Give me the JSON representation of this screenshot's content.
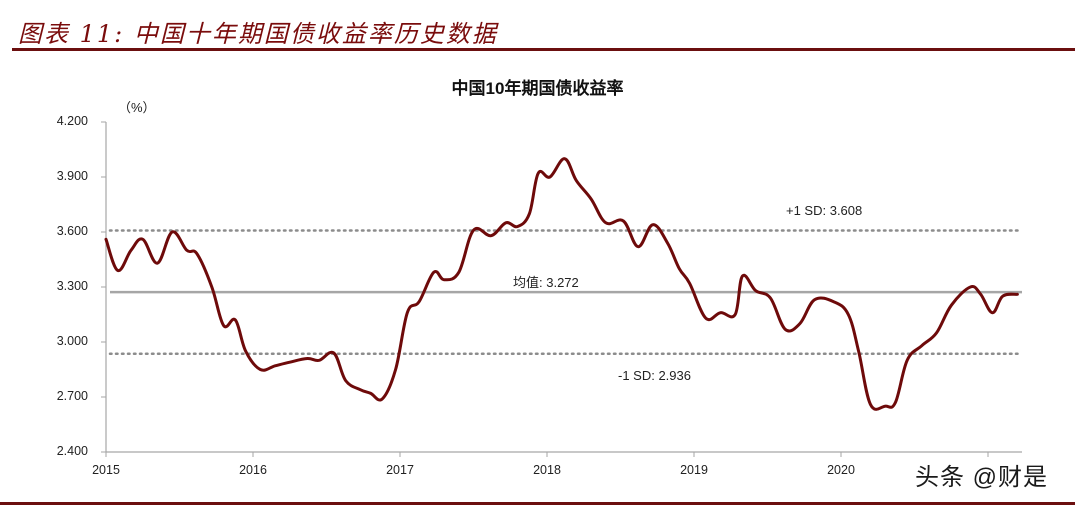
{
  "figure": {
    "title": "图表 11:  中国十年期国债收益率历史数据"
  },
  "watermark": "头条 @财是",
  "colors": {
    "accent": "#6b0f0f",
    "line": "#6e0a0a",
    "mean_line": "#a6a6a6",
    "sd_line": "#8c8c8c",
    "axis": "#a6a6a6"
  },
  "chart_data": {
    "type": "line",
    "title": "中国10年期国债收益率",
    "xlabel": "",
    "ylabel": "（%）",
    "ylim": [
      2.4,
      4.2
    ],
    "yticks": [
      "4.200",
      "3.900",
      "3.600",
      "3.300",
      "3.000",
      "2.700",
      "2.400"
    ],
    "xticks": [
      "2015",
      "2016",
      "2017",
      "2018",
      "2019",
      "2020",
      ""
    ],
    "grid": false,
    "legend": null,
    "reference_lines": [
      {
        "name": "+1 SD",
        "label": "+1 SD:  3.608",
        "value": 3.608,
        "style": "dotted"
      },
      {
        "name": "mean",
        "label": "均值: 3.272",
        "value": 3.272,
        "style": "solid"
      },
      {
        "name": "-1 SD",
        "label": "-1 SD:  2.936",
        "value": 2.936,
        "style": "dotted"
      }
    ],
    "series": [
      {
        "name": "中国10年期国债收益率",
        "x": [
          2015.0,
          2015.08,
          2015.17,
          2015.25,
          2015.35,
          2015.45,
          2015.55,
          2015.62,
          2015.72,
          2015.8,
          2015.88,
          2015.95,
          2016.05,
          2016.15,
          2016.25,
          2016.37,
          2016.45,
          2016.55,
          2016.63,
          2016.73,
          2016.8,
          2016.88,
          2016.97,
          2017.05,
          2017.13,
          2017.23,
          2017.3,
          2017.4,
          2017.5,
          2017.62,
          2017.72,
          2017.8,
          2017.88,
          2017.94,
          2018.02,
          2018.12,
          2018.2,
          2018.3,
          2018.4,
          2018.52,
          2018.62,
          2018.72,
          2018.82,
          2018.9,
          2018.97,
          2019.08,
          2019.18,
          2019.28,
          2019.33,
          2019.42,
          2019.52,
          2019.62,
          2019.72,
          2019.82,
          2019.95,
          2020.05,
          2020.12,
          2020.2,
          2020.3,
          2020.37,
          2020.45,
          2020.55,
          2020.65,
          2020.75,
          2020.88,
          2020.95,
          2021.03,
          2021.1,
          2021.2
        ],
        "values": [
          3.56,
          3.39,
          3.5,
          3.56,
          3.43,
          3.6,
          3.5,
          3.48,
          3.3,
          3.09,
          3.12,
          2.95,
          2.85,
          2.87,
          2.89,
          2.91,
          2.9,
          2.94,
          2.79,
          2.74,
          2.72,
          2.69,
          2.85,
          3.16,
          3.22,
          3.38,
          3.34,
          3.38,
          3.61,
          3.58,
          3.65,
          3.63,
          3.7,
          3.92,
          3.9,
          4.0,
          3.88,
          3.78,
          3.65,
          3.66,
          3.52,
          3.64,
          3.54,
          3.4,
          3.32,
          3.13,
          3.16,
          3.15,
          3.36,
          3.28,
          3.24,
          3.07,
          3.1,
          3.23,
          3.22,
          3.15,
          2.95,
          2.66,
          2.65,
          2.67,
          2.9,
          2.98,
          3.05,
          3.2,
          3.3,
          3.26,
          3.16,
          3.25,
          3.26
        ]
      }
    ],
    "units": "%"
  }
}
